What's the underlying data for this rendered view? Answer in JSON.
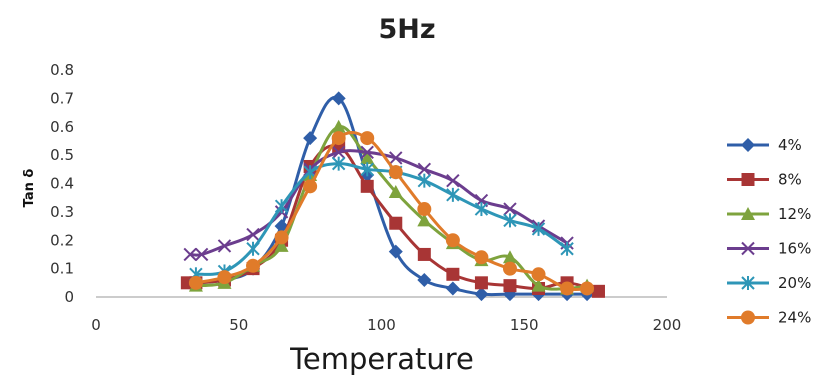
{
  "chart_data": {
    "type": "line",
    "title": "5Hz",
    "xlabel": "Temperature",
    "ylabel": "Tan δ",
    "xlim": [
      0,
      200
    ],
    "ylim": [
      0,
      0.8
    ],
    "xticks": [
      "0",
      "50",
      "100",
      "150",
      "200"
    ],
    "yticks": [
      "0",
      "0.1",
      "0.2",
      "0.3",
      "0.4",
      "0.5",
      "0.6",
      "0.7",
      "0.8"
    ],
    "grid": false,
    "legend_position": "right",
    "series": [
      {
        "name": "4%",
        "color": "#2f5ea8",
        "marker": "diamond",
        "x": [
          35,
          45,
          55,
          65,
          75,
          85,
          95,
          105,
          115,
          125,
          135,
          145,
          155,
          165,
          172
        ],
        "y": [
          0.05,
          0.06,
          0.1,
          0.25,
          0.56,
          0.7,
          0.43,
          0.16,
          0.06,
          0.03,
          0.01,
          0.01,
          0.01,
          0.01,
          0.01
        ]
      },
      {
        "name": "8%",
        "color": "#a83535",
        "marker": "square",
        "x": [
          32,
          35,
          45,
          55,
          65,
          75,
          85,
          95,
          105,
          115,
          125,
          135,
          145,
          155,
          165,
          176
        ],
        "y": [
          0.05,
          0.05,
          0.06,
          0.1,
          0.2,
          0.46,
          0.53,
          0.39,
          0.26,
          0.15,
          0.08,
          0.05,
          0.04,
          0.03,
          0.05,
          0.02
        ]
      },
      {
        "name": "12%",
        "color": "#7ea33d",
        "marker": "triangle",
        "x": [
          35,
          45,
          55,
          65,
          75,
          85,
          95,
          105,
          115,
          125,
          135,
          145,
          155,
          165,
          172
        ],
        "y": [
          0.04,
          0.05,
          0.11,
          0.18,
          0.43,
          0.6,
          0.49,
          0.37,
          0.27,
          0.19,
          0.13,
          0.14,
          0.04,
          0.03,
          0.04
        ]
      },
      {
        "name": "16%",
        "color": "#6b3d8e",
        "marker": "x",
        "x": [
          33,
          37,
          45,
          55,
          65,
          75,
          85,
          95,
          105,
          115,
          125,
          135,
          145,
          155,
          165
        ],
        "y": [
          0.15,
          0.15,
          0.18,
          0.22,
          0.3,
          0.45,
          0.51,
          0.51,
          0.49,
          0.45,
          0.41,
          0.34,
          0.31,
          0.25,
          0.19
        ]
      },
      {
        "name": "20%",
        "color": "#2e96b7",
        "marker": "asterisk",
        "x": [
          35,
          45,
          55,
          65,
          75,
          85,
          95,
          105,
          115,
          125,
          135,
          145,
          155,
          165
        ],
        "y": [
          0.08,
          0.09,
          0.17,
          0.32,
          0.44,
          0.47,
          0.45,
          0.44,
          0.41,
          0.36,
          0.31,
          0.27,
          0.24,
          0.17
        ]
      },
      {
        "name": "24%",
        "color": "#e07b2a",
        "marker": "circle",
        "x": [
          35,
          45,
          55,
          65,
          75,
          85,
          95,
          105,
          115,
          125,
          135,
          145,
          155,
          165,
          172
        ],
        "y": [
          0.05,
          0.07,
          0.11,
          0.21,
          0.39,
          0.56,
          0.56,
          0.44,
          0.31,
          0.2,
          0.14,
          0.1,
          0.08,
          0.03,
          0.03
        ]
      }
    ]
  }
}
